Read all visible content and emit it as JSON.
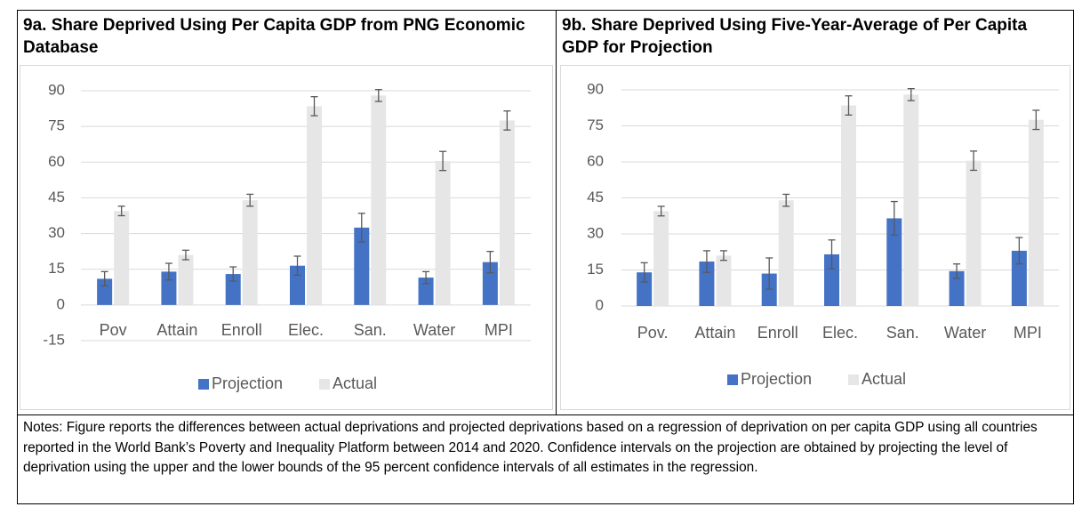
{
  "chart_data": [
    {
      "type": "bar",
      "title": "9a.  Share Deprived Using Per Capita GDP from PNG Economic Database",
      "categories": [
        "Pov",
        "Attain",
        "Enroll",
        "Elec.",
        "San.",
        "Water",
        "MPI"
      ],
      "series": [
        {
          "name": "Projection",
          "color": "#4472c4",
          "values": [
            11,
            14,
            13,
            16.5,
            32.5,
            11.5,
            18
          ],
          "errors": [
            3,
            3.5,
            3,
            4,
            6,
            2.5,
            4.5
          ]
        },
        {
          "name": "Actual",
          "color": "#e7e6e6",
          "values": [
            39.5,
            21,
            44,
            83.5,
            88,
            60.5,
            77.5
          ],
          "errors": [
            2,
            2,
            2.5,
            4,
            2.5,
            4,
            4
          ]
        }
      ],
      "ylim": [
        -15,
        90
      ],
      "yticks": [
        -15,
        0,
        15,
        30,
        45,
        60,
        75,
        90
      ],
      "grid": true,
      "legend": "bottom",
      "error_bar_color": "#595959"
    },
    {
      "type": "bar",
      "title": "9b. Share Deprived Using Five-Year-Average of Per Capita GDP for Projection",
      "categories": [
        "Pov.",
        "Attain",
        "Enroll",
        "Elec.",
        "San.",
        "Water",
        "MPI"
      ],
      "series": [
        {
          "name": "Projection",
          "color": "#4472c4",
          "values": [
            14,
            18.5,
            13.5,
            21.5,
            36.5,
            14.5,
            23
          ],
          "errors": [
            4,
            4.5,
            6.5,
            6,
            7,
            3,
            5.5
          ]
        },
        {
          "name": "Actual",
          "color": "#e7e6e6",
          "values": [
            39.5,
            21,
            44,
            83.5,
            88,
            60.5,
            77.5
          ],
          "errors": [
            2,
            2,
            2.5,
            4,
            2.5,
            4,
            4
          ]
        }
      ],
      "ylim": [
        0,
        90
      ],
      "yticks": [
        0,
        15,
        30,
        45,
        60,
        75,
        90
      ],
      "grid": true,
      "legend": "bottom",
      "error_bar_color": "#595959"
    }
  ],
  "notes": "Notes:  Figure reports the differences between actual deprivations and projected deprivations based on a regression of deprivation on per capita GDP using all countries reported in the World Bank’s Poverty and Inequality Platform between 2014 and 2020.  Confidence intervals on the projection are obtained by projecting the level of deprivation using the upper and the lower bounds of the 95 percent confidence intervals of all estimates in the regression."
}
